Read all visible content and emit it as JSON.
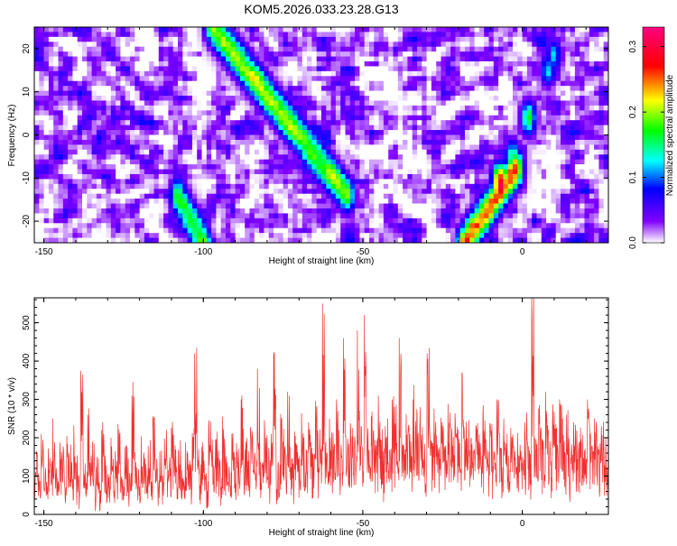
{
  "title": "KOM5.2026.033.23.28.G13",
  "chart_data": [
    {
      "type": "heatmap",
      "xlabel": "Height of straight line (km)",
      "ylabel": "Frequency (Hz)",
      "xlim": [
        -153,
        27
      ],
      "ylim": [
        -25,
        25
      ],
      "x_ticks": [
        -150,
        -100,
        -50,
        0
      ],
      "y_ticks": [
        20,
        10,
        0,
        -10,
        -20
      ],
      "colorbar": {
        "label": "Normalized spectral amplitude",
        "range": [
          0.0,
          0.33
        ],
        "ticks": [
          0.0,
          0.1,
          0.2,
          0.3
        ],
        "colors": [
          "#ffffff",
          "#8000ff",
          "#0000ff",
          "#00ffff",
          "#00ff00",
          "#ffff00",
          "#ff0000",
          "#ff0080"
        ]
      },
      "ridges": [
        {
          "x": [
            -108,
            -100
          ],
          "y": [
            -14,
            -25
          ],
          "peak": 0.18
        },
        {
          "x": [
            -97,
            -55
          ],
          "y": [
            25,
            -14
          ],
          "peak": 0.2
        },
        {
          "x": [
            -18,
            -2
          ],
          "y": [
            -25,
            -8
          ],
          "peak": 0.24
        },
        {
          "x": -7,
          "y": -11,
          "peak": 0.32
        },
        {
          "x": -3,
          "y": -5,
          "peak": 0.14
        },
        {
          "x": 2,
          "y": 4,
          "peak": 0.18
        },
        {
          "x": 8,
          "y": 15,
          "peak": 0.12
        },
        {
          "x": 10,
          "y": 18,
          "peak": 0.12
        }
      ]
    },
    {
      "type": "line",
      "xlabel": "Height of straight line (km)",
      "ylabel": "SNR (10 * v/v)",
      "xlim": [
        -153,
        27
      ],
      "ylim": [
        0,
        565
      ],
      "x_ticks": [
        -150,
        -100,
        -50,
        0
      ],
      "y_ticks": [
        0,
        100,
        200,
        300,
        400,
        500
      ],
      "color": "#f03030",
      "series": [
        {
          "values": [
            120,
            165,
            98,
            210,
            140,
            85,
            172,
            130,
            250,
            110,
            95,
            188,
            142,
            76,
            205,
            160,
            118,
            232,
            130,
            102,
            375,
            145,
            88,
            260,
            135,
            190,
            112,
            150,
            84,
            220,
            170,
            128,
            96,
            200,
            145,
            118,
            236,
            128,
            92,
            176,
            140,
            108,
            310,
            158,
            122,
            90,
            204,
            150,
            132,
            178,
            102,
            256,
            140,
            118,
            164,
            96,
            198,
            144,
            124,
            226,
            150,
            110,
            168,
            136,
            94,
            188,
            160,
            128,
            212,
            420,
            150,
            122,
            176,
            140,
            108,
            230,
            160,
            130,
            196,
            148,
            118,
            255,
            170,
            136,
            100,
            210,
            160,
            186,
            130,
            300,
            150,
            190,
            140,
            228,
            175,
            150,
            380,
            162,
            134,
            246,
            186,
            154,
            210,
            420,
            170,
            136,
            262,
            190,
            158,
            320,
            176,
            146,
            216,
            182,
            152,
            264,
            200,
            168,
            240,
            188,
            156,
            296,
            210,
            172,
            550,
            196,
            160,
            250,
            214,
            176,
            300,
            220,
            182,
            460,
            206,
            170,
            238,
            226,
            188,
            480,
            212,
            176,
            520,
            200,
            168,
            256,
            216,
            180,
            310,
            196,
            164,
            230,
            250,
            170,
            300,
            280,
            186,
            460,
            214,
            176,
            262,
            232,
            190,
            300,
            244,
            196,
            280,
            228,
            184,
            420,
            236,
            190,
            276,
            206,
            170,
            252,
            220,
            180,
            288,
            214,
            178,
            264,
            228,
            186,
            370,
            214,
            178,
            246,
            200,
            166,
            232,
            190,
            160,
            260,
            204,
            168,
            238,
            196,
            162,
            300,
            210,
            172,
            250,
            186,
            154,
            226,
            176,
            148,
            212,
            182,
            150,
            240,
            200,
            168,
            564,
            214,
            180,
            276,
            226,
            190,
            320,
            206,
            170,
            250,
            218,
            182,
            300,
            230,
            190,
            260,
            198,
            164,
            240,
            190,
            158,
            226,
            208,
            172,
            300,
            214,
            178,
            250,
            196,
            162,
            230,
            186,
            154,
            290
          ]
        }
      ]
    }
  ]
}
